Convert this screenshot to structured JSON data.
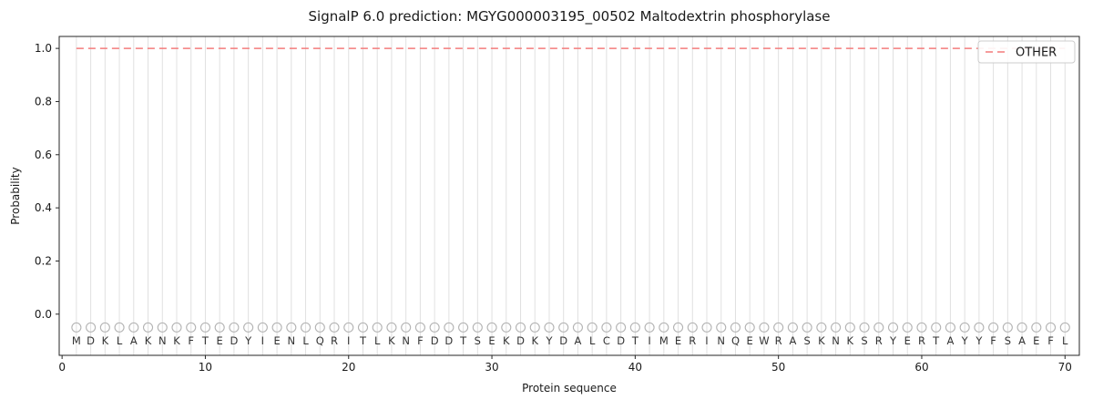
{
  "chart_data": {
    "type": "line",
    "title": "SignalP 6.0 prediction: MGYG000003195_00502 Maltodextrin phosphorylase",
    "xlabel": "Protein sequence",
    "ylabel": "Probability",
    "xlim": [
      -0.2,
      71
    ],
    "ylim": [
      -0.155,
      1.045
    ],
    "x_ticks": [
      0,
      10,
      20,
      30,
      40,
      50,
      60,
      70
    ],
    "y_ticks": [
      0.0,
      0.2,
      0.4,
      0.6,
      0.8,
      1.0
    ],
    "grid": "vertical-per-residue",
    "sequence": "MDKLAKNKFTEDYIENLQRITLKNFDDTSEKDKYDALCDTIMERINQEWRASKNKSRYERTAYYFSAEFL",
    "sequence_length": 70,
    "series": [
      {
        "name": "OTHER",
        "style": "dashed",
        "constant_value": 1.0,
        "x_start": 1,
        "x_end": 70
      }
    ],
    "marker_row": {
      "y": -0.05,
      "marker": "open-circle",
      "per_residue": true
    },
    "legend": {
      "position": "top-right",
      "entries": [
        {
          "label": "OTHER",
          "style": "dashed"
        }
      ]
    },
    "colors": {
      "other_line": "#f47c7c",
      "grid": "#e0e0e0",
      "spine": "#262626",
      "tick_text": "#1a1a1a",
      "marker": "#b3b3b3",
      "letter": "#333333",
      "legend_border": "#cccccc",
      "legend_bg": "#ffffff"
    }
  }
}
